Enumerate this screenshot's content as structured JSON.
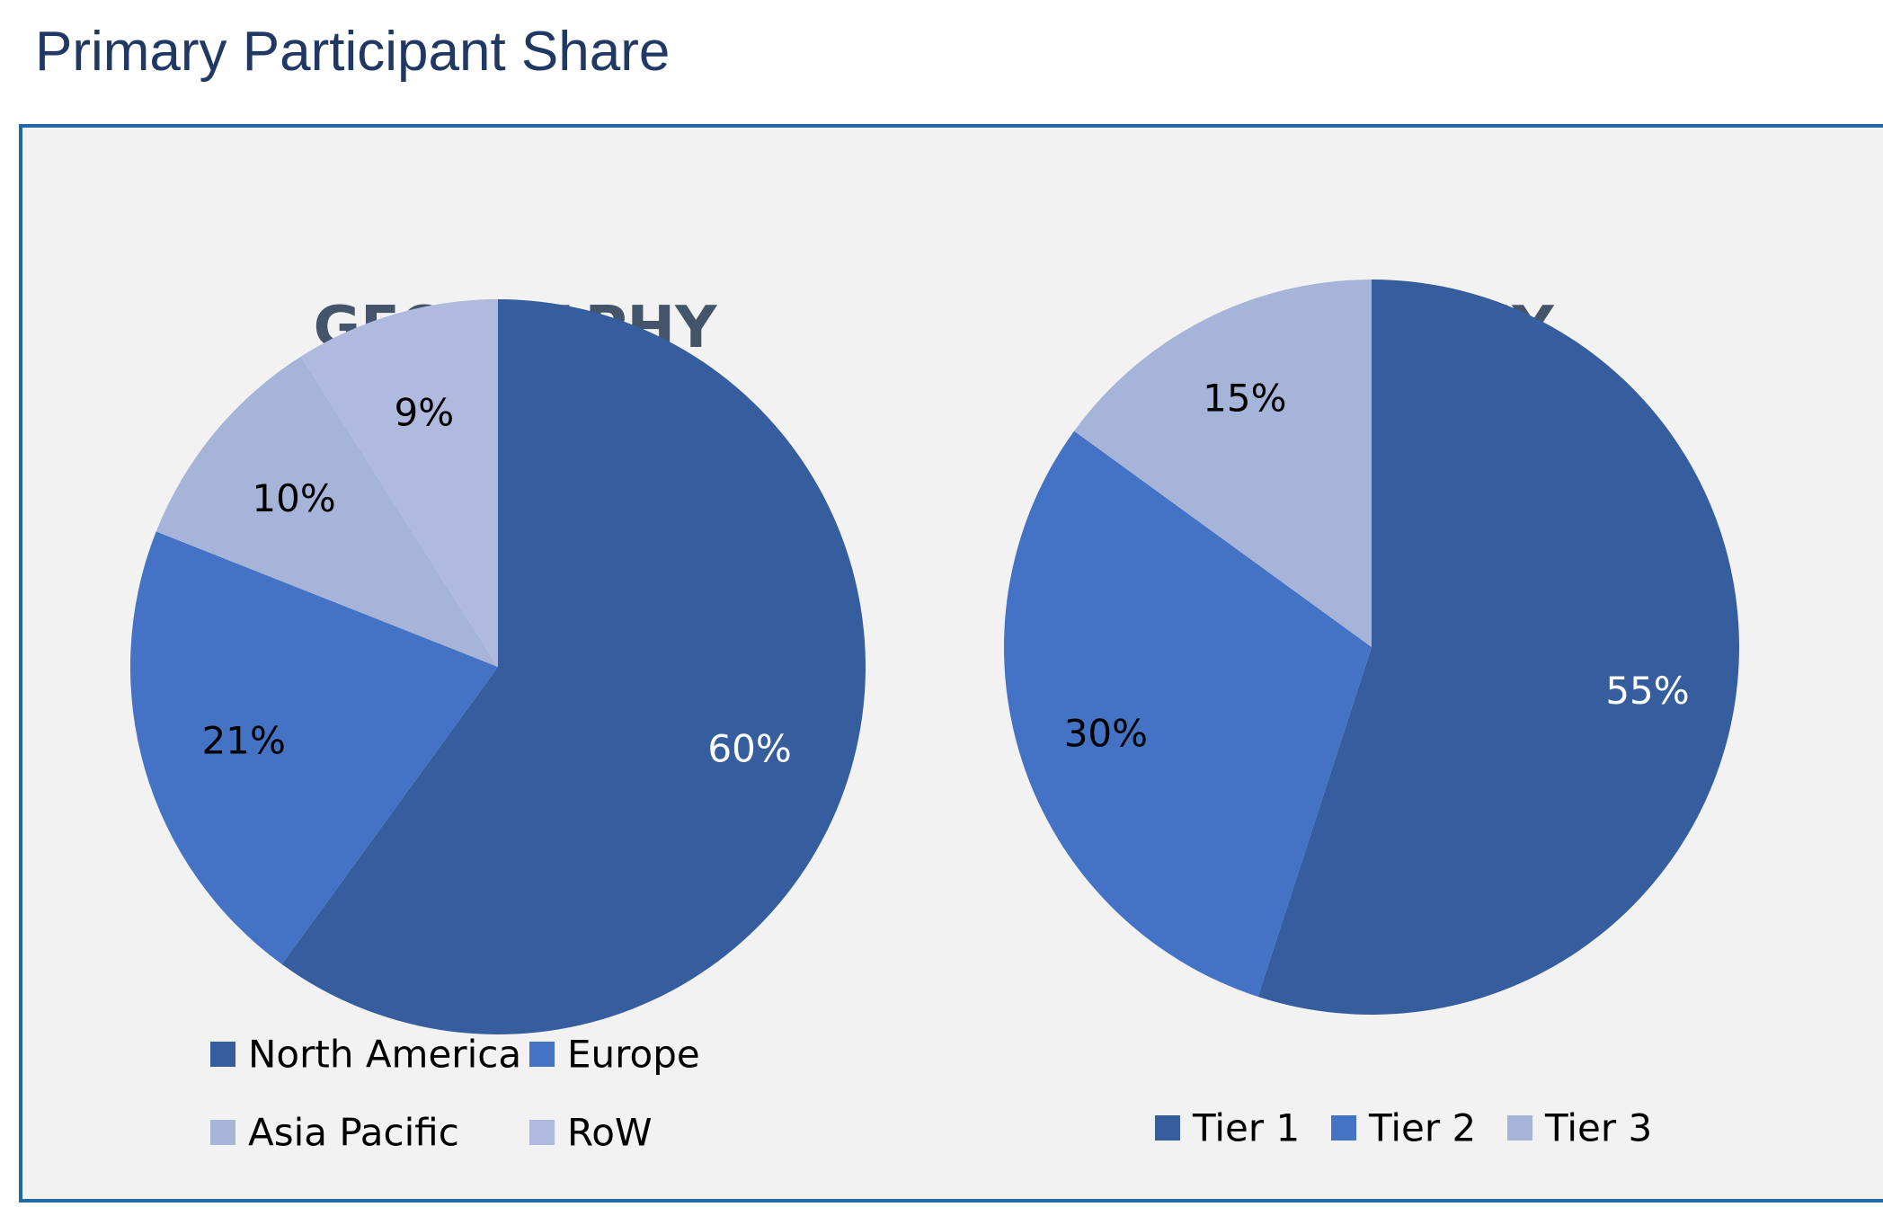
{
  "page": {
    "title": "Primary Participant Share"
  },
  "colors": {
    "title_text": "#1f3864",
    "panel_background": "#f2f2f2",
    "panel_border": "#1f6aa5",
    "chart_title_text": "#44546a",
    "series_dark": "#365e9f",
    "series_mid": "#4472c4",
    "series_light": "#a6b4d9",
    "series_lighter": "#b0bade"
  },
  "chart_data": [
    {
      "type": "pie",
      "title": "GEOGRAPHY",
      "categories": [
        "North America",
        "Europe",
        "Asia Pacific",
        "RoW"
      ],
      "values": [
        60,
        21,
        10,
        9
      ],
      "labels": [
        "60%",
        "21%",
        "10%",
        "9%"
      ],
      "colors": [
        "#365e9f",
        "#4472c4",
        "#a6b4d9",
        "#b0bade"
      ],
      "label_colors": [
        "#ffffff",
        "#000000",
        "#000000",
        "#000000"
      ],
      "legend": "bottom"
    },
    {
      "type": "pie",
      "title": "COMPANY",
      "categories": [
        "Tier 1",
        "Tier 2",
        "Tier 3"
      ],
      "values": [
        55,
        30,
        15
      ],
      "labels": [
        "55%",
        "30%",
        "15%"
      ],
      "colors": [
        "#365e9f",
        "#4472c4",
        "#a6b4d9"
      ],
      "label_colors": [
        "#ffffff",
        "#000000",
        "#000000"
      ],
      "legend": "bottom"
    }
  ]
}
